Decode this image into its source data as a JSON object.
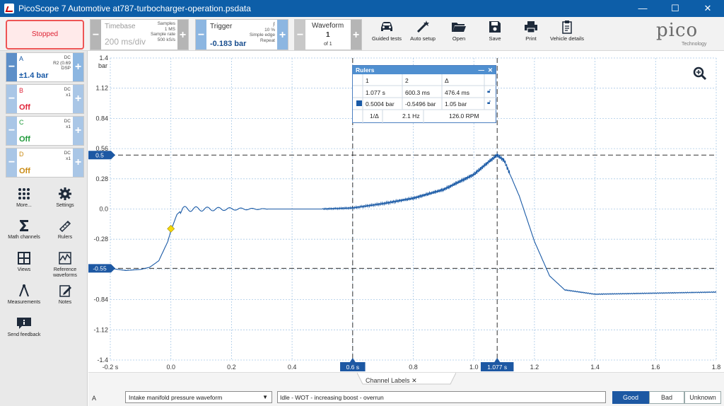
{
  "window": {
    "title": "PicoScope 7 Automotive at787-turbocharger-operation.psdata",
    "minimize": "—",
    "maximize": "☐",
    "close": "✕"
  },
  "toolbar": {
    "run_state": "Stopped",
    "timebase": {
      "label": "Timebase",
      "value": "200 ms/div",
      "samples_label": "Samples",
      "samples": "1 MS",
      "rate_label": "Sample rate",
      "rate": "500 kS/s"
    },
    "trigger": {
      "label": "Trigger",
      "value": "-0.183 bar",
      "percent": "10 %",
      "edge": "Simple edge",
      "mode": "Repeat"
    },
    "waveform": {
      "label": "Waveform",
      "current": "1",
      "of": "of 1"
    },
    "tools": [
      {
        "label": "Guided tests",
        "icon": "car-icon"
      },
      {
        "label": "Auto setup",
        "icon": "wand-icon"
      },
      {
        "label": "Open",
        "icon": "folder-icon"
      },
      {
        "label": "Save",
        "icon": "floppy-icon"
      },
      {
        "label": "Print",
        "icon": "printer-icon"
      },
      {
        "label": "Vehicle details",
        "icon": "clipboard-icon"
      }
    ],
    "logo": {
      "text": "pico",
      "sub": "Technology"
    }
  },
  "channels": [
    {
      "name": "A",
      "value": "±1.4 bar",
      "coupling": "DC",
      "line2": "R2 (0.69",
      "line3": "DSP",
      "color": "#1a5aa6"
    },
    {
      "name": "B",
      "value": "Off",
      "coupling": "DC",
      "line2": "x1",
      "line3": "",
      "color": "#e0253a"
    },
    {
      "name": "C",
      "value": "Off",
      "coupling": "DC",
      "line2": "x1",
      "line3": "",
      "color": "#1f9a3a"
    },
    {
      "name": "D",
      "value": "Off",
      "coupling": "DC",
      "line2": "x1",
      "line3": "",
      "color": "#c98a12"
    }
  ],
  "sidebar_tools": [
    {
      "label": "More...",
      "icon": "grid-dots-icon"
    },
    {
      "label": "Settings",
      "icon": "gear-icon"
    },
    {
      "label": "Math channels",
      "icon": "sigma-icon"
    },
    {
      "label": "Rulers",
      "icon": "ruler-icon"
    },
    {
      "label": "Views",
      "icon": "views-icon"
    },
    {
      "label": "Reference waveforms",
      "icon": "reference-icon"
    },
    {
      "label": "Measurements",
      "icon": "caliper-icon"
    },
    {
      "label": "Notes",
      "icon": "notes-icon"
    },
    {
      "label": "Send feedback",
      "icon": "feedback-icon"
    }
  ],
  "chart_data": {
    "type": "line",
    "yunit": "bar",
    "ylim": [
      -1.4,
      1.4
    ],
    "yticks": [
      "1.4",
      "1.12",
      "0.84",
      "0.56",
      "0.28",
      "0.0",
      "-0.28",
      "-0.56",
      "-0.84",
      "-1.12",
      "-1.4"
    ],
    "xlim": [
      -0.2,
      1.8
    ],
    "xticks": [
      "-0.2 s",
      "0.0",
      "0.2",
      "0.4",
      "0.6 s",
      "0.8",
      "1.0",
      "1.077 s",
      "1.2",
      "1.4",
      "1.6",
      "1.8"
    ],
    "grid": true,
    "series": [
      {
        "color": "#1a5aa6",
        "x": [
          -0.2,
          -0.15,
          -0.1,
          -0.07,
          -0.04,
          -0.01,
          0.0,
          0.02,
          0.04,
          0.1,
          0.2,
          0.3,
          0.4,
          0.5,
          0.6,
          0.7,
          0.8,
          0.9,
          1.0,
          1.05,
          1.077,
          1.1,
          1.15,
          1.2,
          1.25,
          1.3,
          1.4,
          1.6,
          1.8
        ],
        "y": [
          -0.55,
          -0.57,
          -0.56,
          -0.54,
          -0.48,
          -0.3,
          -0.2,
          -0.05,
          0.0,
          0.0,
          0.0,
          0.0,
          0.0,
          0.0,
          0.01,
          0.05,
          0.1,
          0.18,
          0.32,
          0.44,
          0.5,
          0.45,
          0.12,
          -0.3,
          -0.62,
          -0.75,
          -0.79,
          -0.78,
          -0.77
        ]
      }
    ],
    "hrulers": [
      {
        "label": "0.5",
        "y": 0.5
      },
      {
        "label": "-0.55",
        "y": -0.55
      }
    ],
    "vrulers": [
      {
        "label": "0.6 s",
        "x": 0.6
      },
      {
        "label": "1.077 s",
        "x": 1.077
      }
    ],
    "trigger_point": {
      "x": 0.0,
      "y": -0.183
    }
  },
  "rulers_panel": {
    "title": "Rulers",
    "col1": "1",
    "col2": "2",
    "col3": "Δ",
    "row1": {
      "c1": "1.077 s",
      "c2": "600.3 ms",
      "c3": "476.4 ms"
    },
    "row2": {
      "c1": "0.5004 bar",
      "c2": "-0.5496 bar",
      "c3": "1.05 bar"
    },
    "row3": {
      "c0": "1/Δ",
      "c1": "2.1 Hz",
      "c2": "126.0 RPM"
    }
  },
  "bottom": {
    "tab_label": "Channel Labels",
    "tab_close": "✕",
    "channel": "A",
    "waveform_select": "Intake manifold pressure waveform",
    "description": "Idle - WOT - increasing boost - overrun",
    "verdicts": {
      "good": "Good",
      "bad": "Bad",
      "unknown": "Unknown"
    }
  }
}
